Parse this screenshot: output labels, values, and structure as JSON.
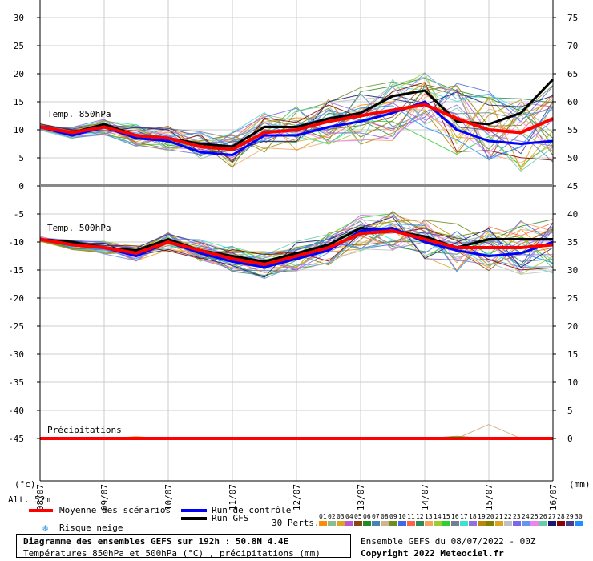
{
  "left_axis_ticks": [
    30,
    25,
    20,
    15,
    10,
    5,
    0,
    -5,
    -10,
    -15,
    -20,
    -25,
    -30,
    -35,
    -40,
    -45
  ],
  "right_axis_ticks": [
    75,
    70,
    65,
    60,
    55,
    50,
    45,
    40,
    35,
    30,
    25,
    20,
    15,
    10,
    5,
    0
  ],
  "left_unit": "(°c)",
  "right_unit": "(mm)",
  "x_labels": [
    "08/07",
    "09/07",
    "10/07",
    "11/07",
    "12/07",
    "13/07",
    "14/07",
    "15/07",
    "16/07"
  ],
  "panel_labels": {
    "t850": "Temp. 850hPa",
    "t500": "Temp. 500hPa",
    "precip": "Précipitations"
  },
  "alt_label": "Alt. 52m",
  "legend": {
    "mean": {
      "label": "Moyenne des scénarios",
      "color": "#ff0000"
    },
    "control": {
      "label": "Run de contrôle",
      "color": "#0000ff"
    },
    "gfs": {
      "label": "Run GFS",
      "color": "#000000"
    },
    "snow": {
      "label": "Risque neige",
      "icon": "snowflake-icon"
    }
  },
  "perts": {
    "label": "30 Perts.",
    "numbers": [
      "01",
      "02",
      "03",
      "04",
      "05",
      "06",
      "07",
      "08",
      "09",
      "10",
      "11",
      "12",
      "13",
      "14",
      "15",
      "16",
      "17",
      "18",
      "19",
      "20",
      "21",
      "22",
      "23",
      "24",
      "25",
      "26",
      "27",
      "28",
      "29",
      "30"
    ],
    "colors": [
      "#ff8c00",
      "#8fbc8f",
      "#daa520",
      "#ba55d3",
      "#8b4513",
      "#228b22",
      "#4682b4",
      "#d2b48c",
      "#6b8e23",
      "#4169e1",
      "#ff6347",
      "#2e8b57",
      "#f4a460",
      "#9acd32",
      "#32cd32",
      "#708090",
      "#40e0d0",
      "#9370db",
      "#b8860b",
      "#808000",
      "#daa520",
      "#c0c0c0",
      "#7b68ee",
      "#6495ed",
      "#ee82ee",
      "#66cdaa",
      "#191970",
      "#8b0000",
      "#483d8b",
      "#1e90ff"
    ]
  },
  "footer": {
    "title": "Diagramme des ensembles GEFS sur 192h : 50.8N 4.4E",
    "subtitle": "Températures 850hPa et 500hPa (°C) , précipitations (mm)",
    "run": "Ensemble GEFS du 08/07/2022 - 00Z",
    "copyright": "Copyright 2022 Meteociel.fr"
  },
  "chart_data": [
    {
      "type": "line",
      "title": "Temp. 850hPa",
      "ylabel": "(°c)",
      "x": [
        "08/07 00Z",
        "08/07 12Z",
        "09/07 00Z",
        "09/07 12Z",
        "10/07 00Z",
        "10/07 12Z",
        "11/07 00Z",
        "11/07 12Z",
        "12/07 00Z",
        "12/07 12Z",
        "13/07 00Z",
        "13/07 12Z",
        "14/07 00Z",
        "14/07 12Z",
        "15/07 00Z",
        "15/07 12Z",
        "16/07 00Z"
      ],
      "series": [
        {
          "name": "Moyenne des scénarios",
          "color": "#ff0000",
          "values": [
            10.5,
            9.5,
            10.5,
            9,
            8.5,
            7,
            6.5,
            9.5,
            10,
            11.5,
            12.5,
            13.5,
            14.5,
            12,
            10,
            9.5,
            12
          ]
        },
        {
          "name": "Run de contrôle",
          "color": "#0000ff",
          "values": [
            10.5,
            9,
            10.5,
            8.5,
            8,
            6,
            5.5,
            9,
            9,
            10.5,
            11.5,
            13,
            15,
            10,
            8,
            7.5,
            8
          ]
        },
        {
          "name": "Run GFS",
          "color": "#000000",
          "values": [
            10.5,
            9.5,
            11,
            9,
            8.5,
            7.5,
            7,
            10.5,
            10.5,
            12,
            13,
            16,
            17,
            11.5,
            11,
            13,
            19
          ]
        }
      ]
    },
    {
      "type": "line",
      "title": "Temp. 500hPa",
      "ylabel": "(°c)",
      "x": [
        "08/07 00Z",
        "08/07 12Z",
        "09/07 00Z",
        "09/07 12Z",
        "10/07 00Z",
        "10/07 12Z",
        "11/07 00Z",
        "11/07 12Z",
        "12/07 00Z",
        "12/07 12Z",
        "13/07 00Z",
        "13/07 12Z",
        "14/07 00Z",
        "14/07 12Z",
        "15/07 00Z",
        "15/07 12Z",
        "16/07 00Z"
      ],
      "series": [
        {
          "name": "Moyenne des scénarios",
          "color": "#ff0000",
          "values": [
            -9.5,
            -10.5,
            -11,
            -12,
            -10,
            -11.5,
            -13,
            -14,
            -12.5,
            -11,
            -8.5,
            -8,
            -9.5,
            -11,
            -11,
            -11,
            -10.5
          ]
        },
        {
          "name": "Run de contrôle",
          "color": "#0000ff",
          "values": [
            -9.5,
            -10.5,
            -11,
            -12.5,
            -10,
            -12,
            -13.5,
            -14.5,
            -13,
            -11.5,
            -8,
            -7.5,
            -10,
            -11.5,
            -12.5,
            -12,
            -10
          ]
        },
        {
          "name": "Run GFS",
          "color": "#000000",
          "values": [
            -9.5,
            -10,
            -11,
            -11.5,
            -9.5,
            -11.5,
            -12.5,
            -13.5,
            -12,
            -10.5,
            -7.5,
            -8,
            -9,
            -11,
            -9.5,
            -9.5,
            -9.5
          ]
        }
      ]
    },
    {
      "type": "line",
      "title": "Précipitations",
      "ylabel": "(mm)",
      "x": [
        "08/07 00Z",
        "08/07 12Z",
        "09/07 00Z",
        "09/07 12Z",
        "10/07 00Z",
        "10/07 12Z",
        "11/07 00Z",
        "11/07 12Z",
        "12/07 00Z",
        "12/07 12Z",
        "13/07 00Z",
        "13/07 12Z",
        "14/07 00Z",
        "14/07 12Z",
        "15/07 00Z",
        "15/07 12Z",
        "16/07 00Z"
      ],
      "series": [
        {
          "name": "Moyenne des scénarios",
          "color": "#ff0000",
          "values": [
            0,
            0,
            0,
            0,
            0,
            0,
            0,
            0,
            0,
            0,
            0,
            0,
            0,
            0,
            0,
            0,
            0
          ]
        }
      ]
    }
  ]
}
